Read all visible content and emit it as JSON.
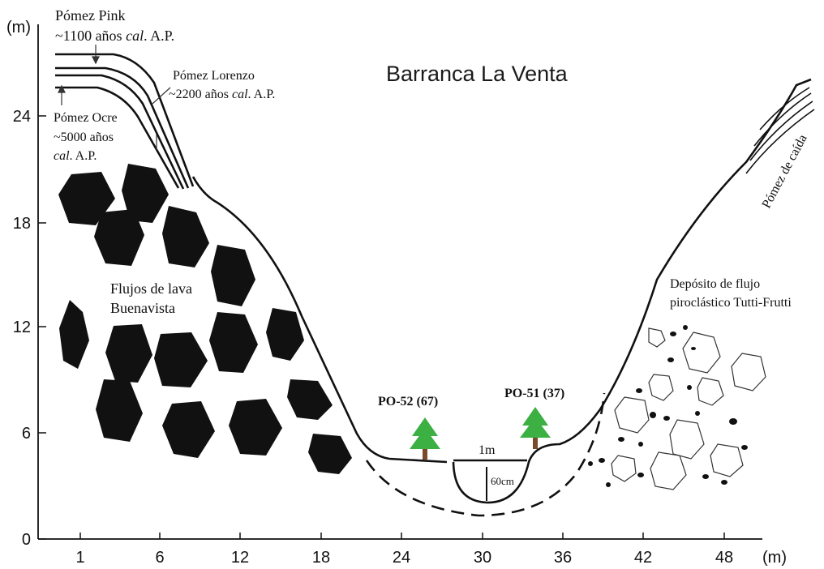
{
  "title": "Barranca La Venta",
  "axes": {
    "y_unit": "(m)",
    "x_unit": "(m)",
    "y_ticks": [
      "0",
      "6",
      "12",
      "18",
      "24"
    ],
    "x_ticks": [
      "1",
      "6",
      "12",
      "18",
      "24",
      "30",
      "36",
      "42",
      "48"
    ]
  },
  "labels": {
    "pink_name": "Pómez Pink",
    "pink_age_prefix": "~1100 años ",
    "pink_age_cal": "cal",
    "pink_age_suffix": ". A.P.",
    "lorenzo_name": "Pómez Lorenzo",
    "lorenzo_age_prefix": "~2200 años ",
    "lorenzo_age_cal": "cal",
    "lorenzo_age_suffix": ". A.P.",
    "ocre_name": "Pómez Ocre",
    "ocre_age_line1": "~5000 años",
    "ocre_age_cal": "cal",
    "ocre_age_suffix": ". A.P.",
    "lava_line1": "Flujos de lava",
    "lava_line2": "Buenavista",
    "caida": "Pómez de caída",
    "flujo_line1": "Depósito de flujo",
    "flujo_line2": "piroclástico Tutti-Frutti",
    "po52": "PO-52 (67)",
    "po51": "PO-51 (37)",
    "width_1m": "1m",
    "depth_60cm": "60cm"
  },
  "colors": {
    "rock": "#111111",
    "tree": "#3cb043",
    "trunk": "#7a4a2a",
    "line": "#111111"
  }
}
